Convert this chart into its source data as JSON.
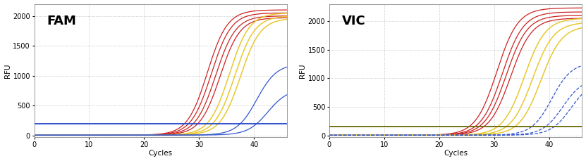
{
  "panels": [
    {
      "title": "FAM",
      "ylabel": "RFU",
      "xlabel": "Cycles",
      "xlim": [
        0,
        46
      ],
      "ylim": [
        -30,
        2200
      ],
      "yticks": [
        0,
        500,
        1000,
        1500,
        2000
      ],
      "xticks": [
        0,
        10,
        20,
        30,
        40
      ],
      "red_curves": {
        "color": "#cc2222",
        "midpoints": [
          31.5,
          32.2,
          33.0,
          33.8
        ],
        "steepness": [
          0.55,
          0.55,
          0.55,
          0.55
        ],
        "plateaus": [
          2100,
          2050,
          2000,
          1970
        ]
      },
      "yellow_curves": {
        "color": "#e8c830",
        "midpoints": [
          35.5,
          36.5,
          37.5
        ],
        "steepness": [
          0.55,
          0.55,
          0.55
        ],
        "plateaus": [
          2050,
          2000,
          1960
        ]
      },
      "blue_curves": {
        "color": "#3355cc",
        "midpoints": [
          40.5,
          42.5
        ],
        "steepness": [
          0.55,
          0.55
        ],
        "plateaus": [
          1200,
          780
        ]
      },
      "blue_linestyle": "solid",
      "hline_color": "#2244cc",
      "hline_y": 195
    },
    {
      "title": "VIC",
      "ylabel": "RFU",
      "xlabel": "Cycles",
      "xlim": [
        0,
        46
      ],
      "ylim": [
        -30,
        2300
      ],
      "yticks": [
        0,
        500,
        1000,
        1500,
        2000
      ],
      "xticks": [
        0,
        10,
        20,
        30,
        40
      ],
      "red_curves": {
        "color": "#cc2222",
        "midpoints": [
          30.5,
          31.5,
          32.2,
          33.0
        ],
        "steepness": [
          0.52,
          0.52,
          0.52,
          0.52
        ],
        "plateaus": [
          2230,
          2160,
          2100,
          2050
        ]
      },
      "yellow_curves": {
        "color": "#e8c830",
        "midpoints": [
          35.5,
          37.0,
          38.5
        ],
        "steepness": [
          0.52,
          0.52,
          0.52
        ],
        "plateaus": [
          2050,
          1980,
          1920
        ]
      },
      "blue_curves": {
        "color": "#3355cc",
        "midpoints": [
          40.5,
          42.5,
          44.0
        ],
        "steepness": [
          0.55,
          0.55,
          0.55
        ],
        "plateaus": [
          1280,
          1000,
          960
        ]
      },
      "blue_linestyle": "dashed",
      "hline_color": "#666600",
      "hline_y": 150
    }
  ],
  "bg_color": "#ffffff",
  "grid_color": "#aaaaaa",
  "grid_style": "dotted",
  "title_fontsize": 13,
  "axis_fontsize": 7,
  "label_fontsize": 7.5
}
